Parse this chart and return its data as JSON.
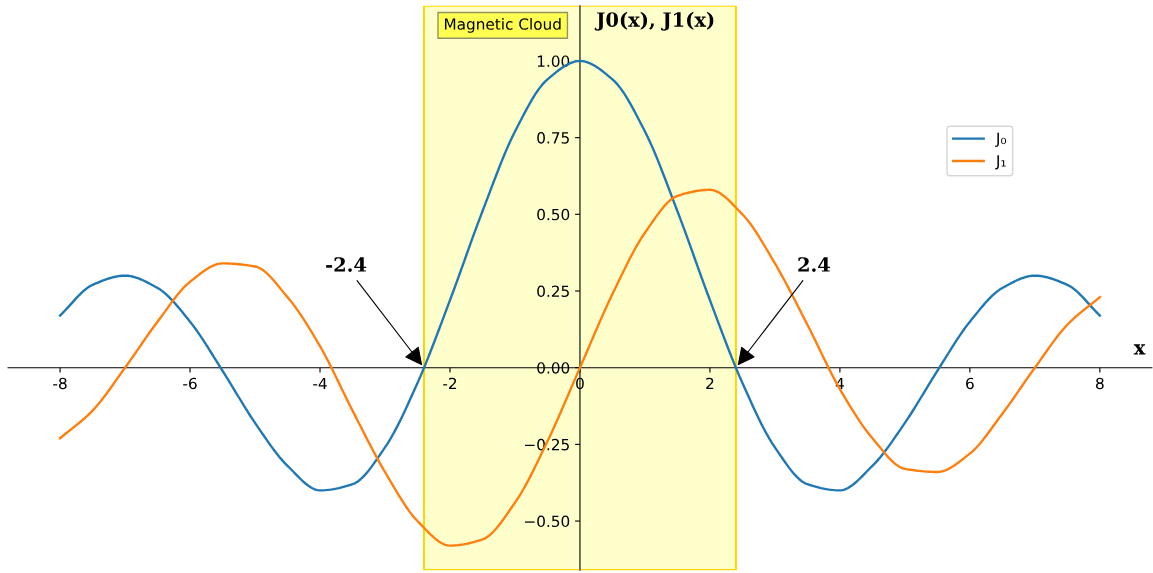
{
  "chart_data": {
    "type": "line",
    "ylabel": "J0(x), J1(x)",
    "xlabel": "x",
    "x": [
      -8,
      -7.5,
      -7,
      -6.5,
      -6,
      -5.5,
      -5,
      -4.5,
      -4,
      -3.5,
      -3,
      -2.5,
      -2,
      -1.5,
      -1,
      -0.5,
      0,
      0.5,
      1,
      1.5,
      2,
      2.5,
      3,
      3.5,
      4,
      4.5,
      5,
      5.5,
      6,
      6.5,
      7,
      7.5,
      8
    ],
    "series": [
      {
        "name": "J₀",
        "color": "#1f77b4",
        "values": [
          0.17,
          0.27,
          0.3,
          0.26,
          0.15,
          -0.01,
          -0.18,
          -0.32,
          -0.4,
          -0.38,
          -0.26,
          -0.05,
          0.22,
          0.51,
          0.77,
          0.94,
          1.0,
          0.94,
          0.77,
          0.51,
          0.22,
          -0.05,
          -0.26,
          -0.38,
          -0.4,
          -0.32,
          -0.18,
          -0.01,
          0.15,
          0.26,
          0.3,
          0.27,
          0.17
        ]
      },
      {
        "name": "J₁",
        "color": "#ff7f0e",
        "values": [
          -0.23,
          -0.14,
          0.0,
          0.15,
          0.28,
          0.34,
          0.33,
          0.23,
          0.07,
          -0.14,
          -0.34,
          -0.5,
          -0.58,
          -0.56,
          -0.44,
          -0.24,
          0.0,
          0.24,
          0.44,
          0.56,
          0.58,
          0.5,
          0.34,
          0.14,
          -0.07,
          -0.23,
          -0.33,
          -0.34,
          -0.28,
          -0.15,
          0.0,
          0.14,
          0.23
        ]
      }
    ],
    "xlim": [
      -8.8,
      8.8
    ],
    "ylim": [
      -0.66,
      1.18
    ],
    "xticks": [
      -8,
      -6,
      -4,
      -2,
      0,
      2,
      4,
      6,
      8
    ],
    "yticks": [
      {
        "value": -0.5,
        "label": "−0.50"
      },
      {
        "value": -0.25,
        "label": "−0.25"
      },
      {
        "value": 0,
        "label": "0.00"
      },
      {
        "value": 0.25,
        "label": "0.25"
      },
      {
        "value": 0.5,
        "label": "0.50"
      },
      {
        "value": 0.75,
        "label": "0.75"
      },
      {
        "value": 1.0,
        "label": "1.00"
      }
    ],
    "bands": [
      {
        "axis": "x",
        "from": -2.4,
        "to": 2.4,
        "label": "Magnetic Cloud",
        "color": "#ffffcc"
      }
    ],
    "annotations": [
      {
        "text": "-2.4",
        "x": -2.4,
        "y": 0
      },
      {
        "text": "2.4",
        "x": 2.4,
        "y": 0
      }
    ],
    "legend": "top right",
    "grid": false
  }
}
